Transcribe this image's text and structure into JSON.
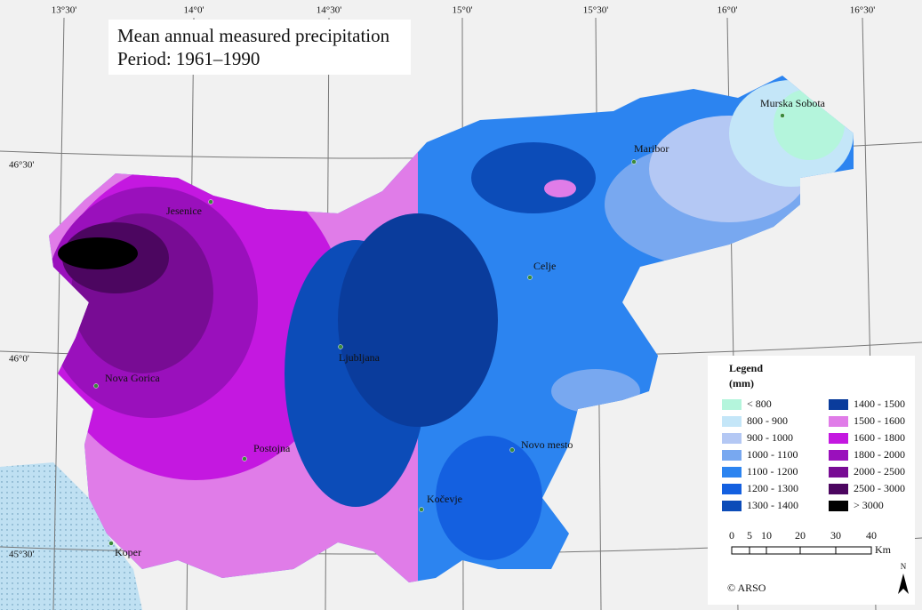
{
  "title": [
    "Mean annual measured precipitation",
    "Period: 1961–1990"
  ],
  "graticule": {
    "longitudes": [
      "13°30'",
      "14°0'",
      "14°30'",
      "15°0'",
      "15°30'",
      "16°0'",
      "16°30'"
    ],
    "latitudes": [
      "46°30'",
      "46°0'",
      "45°30'"
    ]
  },
  "cities": [
    "Murska Sobota",
    "Maribor",
    "Jesenice",
    "Celje",
    "Ljubljana",
    "Nova Gorica",
    "Novo mesto",
    "Postojna",
    "Kočevje",
    "Koper"
  ],
  "legend": {
    "title": "Legend",
    "unit": "(mm)",
    "items": [
      {
        "label": "< 800",
        "color": "#b4f5dc"
      },
      {
        "label": "800 - 900",
        "color": "#c4e6f8"
      },
      {
        "label": "900 - 1000",
        "color": "#b4c8f4"
      },
      {
        "label": "1000 - 1100",
        "color": "#78a8f0"
      },
      {
        "label": "1100 - 1200",
        "color": "#2c84f0"
      },
      {
        "label": "1200 - 1300",
        "color": "#1460e0"
      },
      {
        "label": "1300 - 1400",
        "color": "#0c4cb8"
      },
      {
        "label": "1400 - 1500",
        "color": "#0a3c9c"
      },
      {
        "label": "1500 - 1600",
        "color": "#e07ce8"
      },
      {
        "label": "1600 - 1800",
        "color": "#c418e0"
      },
      {
        "label": "1800 - 2000",
        "color": "#9a10bc"
      },
      {
        "label": "2000 - 2500",
        "color": "#780c94"
      },
      {
        "label": "2500 - 3000",
        "color": "#4c0660"
      },
      {
        "label": "> 3000",
        "color": "#000000"
      }
    ]
  },
  "scale": {
    "labels": [
      "0",
      "5",
      "10",
      "20",
      "30",
      "40"
    ],
    "unit": "Km"
  },
  "north": "N",
  "credit": "© ARSO"
}
